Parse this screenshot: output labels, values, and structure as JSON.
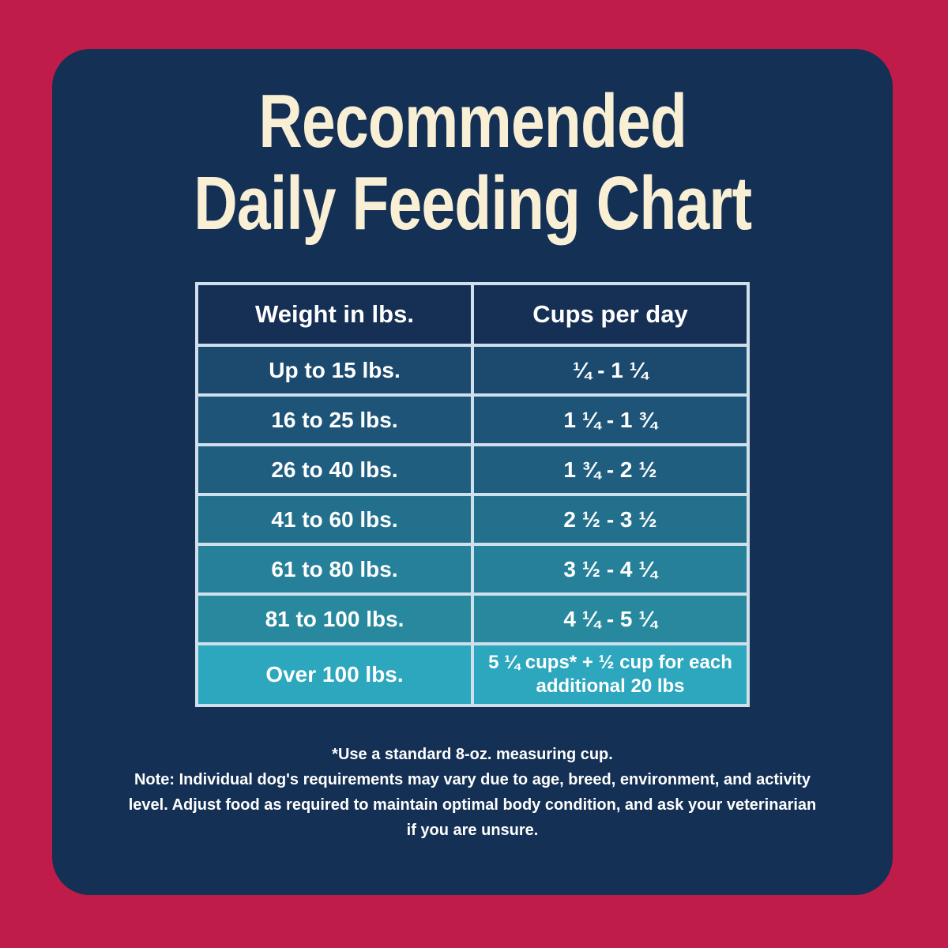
{
  "colors": {
    "background_red": "#c01c49",
    "panel_navy": "#143055",
    "header_row_navy": "#152f55",
    "title_cream": "#f8efd4",
    "table_border_light": "#cfe0ec",
    "body_text_white": "#ffffff"
  },
  "title": {
    "line1": "Recommended",
    "line2": "Daily Feeding Chart"
  },
  "table": {
    "headers": [
      "Weight in lbs.",
      "Cups per day"
    ],
    "rows": [
      {
        "weight": "Up to 15 lbs.",
        "cups": "¼ - 1 ¼",
        "bg": "#1c4a6e"
      },
      {
        "weight": "16 to 25 lbs.",
        "cups": "1 ¼ - 1 ¾",
        "bg": "#1e5478"
      },
      {
        "weight": "26 to 40 lbs.",
        "cups": "1 ¾ - 2 ½",
        "bg": "#205e80"
      },
      {
        "weight": "41 to 60 lbs.",
        "cups": "2 ½ - 3 ½",
        "bg": "#23708d"
      },
      {
        "weight": "61 to 80 lbs.",
        "cups": "3 ½ - 4 ¼",
        "bg": "#26809a"
      },
      {
        "weight": "81 to 100 lbs.",
        "cups": "4 ¼ - 5 ¼",
        "bg": "#28899e"
      },
      {
        "weight": "Over 100 lbs.",
        "cups": "5 ¼ cups* + ½ cup for each\nadditional 20 lbs",
        "bg": "#2ca7be"
      }
    ]
  },
  "notes": {
    "measuring_cup": "*Use a standard 8-oz. measuring cup.",
    "disclaimer": "Note: Individual dog's requirements may vary due to age, breed, environment, and activity level. Adjust food as required to maintain optimal body condition, and ask your veterinarian if you are unsure."
  }
}
